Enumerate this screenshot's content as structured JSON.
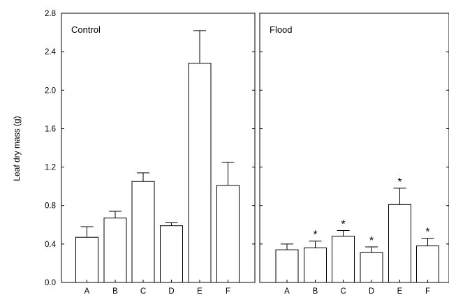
{
  "chart_data": {
    "type": "bar",
    "ylabel": "Leaf dry mass (g)",
    "ylim": [
      0,
      2.8
    ],
    "y_ticks": [
      "0.0",
      "0.4",
      "0.8",
      "1.2",
      "1.6",
      "2.0",
      "2.4",
      "2.8"
    ],
    "categories": [
      "A",
      "B",
      "C",
      "D",
      "E",
      "F"
    ],
    "grid": false,
    "panels": [
      {
        "title": "Control",
        "values": [
          0.47,
          0.67,
          1.05,
          0.59,
          2.28,
          1.01
        ],
        "error_upper": [
          0.58,
          0.74,
          1.14,
          0.62,
          2.62,
          1.25
        ],
        "significance": [
          "",
          "",
          "",
          "",
          "",
          ""
        ]
      },
      {
        "title": "Flood",
        "values": [
          0.34,
          0.36,
          0.48,
          0.31,
          0.81,
          0.38
        ],
        "error_upper": [
          0.4,
          0.43,
          0.54,
          0.37,
          0.98,
          0.46
        ],
        "significance": [
          "",
          "*",
          "*",
          "*",
          "*",
          "*"
        ]
      }
    ]
  }
}
